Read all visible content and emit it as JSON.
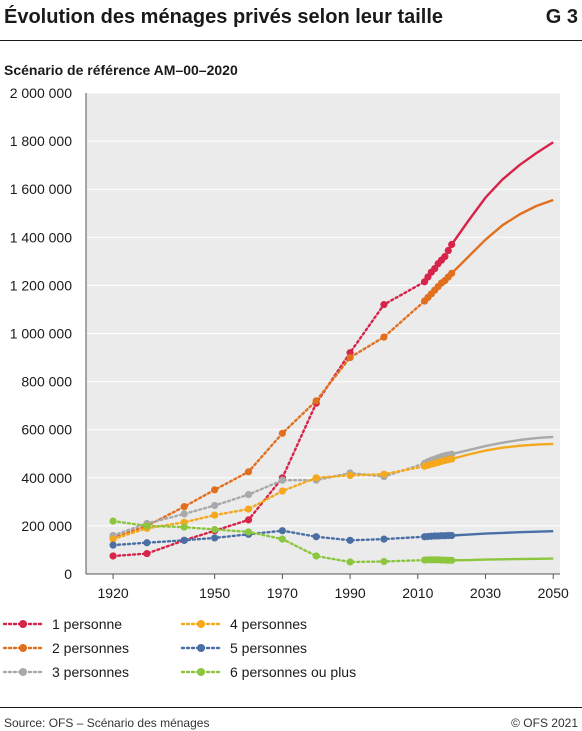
{
  "header": {
    "title": "Évolution des ménages privés selon leur taille",
    "figure_number": "G 3",
    "subtitle": "Scénario de référence AM–00–2020"
  },
  "footer": {
    "source": "Source: OFS – Scénario des ménages",
    "copyright": "© OFS 2021"
  },
  "chart_data": {
    "type": "line",
    "title": "Évolution des ménages privés selon leur taille",
    "subtitle": "Scénario de référence AM–00–2020",
    "xlabel": "",
    "ylabel": "",
    "xlim": [
      1912,
      2052
    ],
    "ylim": [
      0,
      2000000
    ],
    "x_ticks": [
      1920,
      1950,
      1970,
      1990,
      2010,
      2030,
      2050
    ],
    "x_tick_labels": [
      "1920",
      "1950",
      "1970",
      "1990",
      "2010",
      "2030",
      "2050"
    ],
    "y_ticks": [
      0,
      200000,
      400000,
      600000,
      800000,
      1000000,
      1200000,
      1400000,
      1600000,
      1800000,
      2000000
    ],
    "y_tick_labels": [
      "0",
      "200 000",
      "400 000",
      "600 000",
      "800 000",
      "1 000 000",
      "1 200 000",
      "1 400 000",
      "1 600 000",
      "1 800 000",
      "2 000 000"
    ],
    "grid": "horizontal",
    "plot_background": "#ebebeb",
    "legend_position": "bottom",
    "series": [
      {
        "name": "1 personne",
        "color": "#d6244a",
        "observed": [
          [
            1920,
            75000
          ],
          [
            1930,
            85000
          ],
          [
            1941,
            140000
          ],
          [
            1950,
            180000
          ],
          [
            1960,
            225000
          ],
          [
            1970,
            400000
          ],
          [
            1980,
            710000
          ],
          [
            1990,
            920000
          ],
          [
            2000,
            1120000
          ],
          [
            2012,
            1215000
          ],
          [
            2013,
            1235000
          ],
          [
            2014,
            1255000
          ],
          [
            2015,
            1270000
          ],
          [
            2016,
            1290000
          ],
          [
            2017,
            1305000
          ],
          [
            2018,
            1320000
          ],
          [
            2019,
            1345000
          ],
          [
            2020,
            1370000
          ]
        ],
        "projection": [
          [
            2020,
            1370000
          ],
          [
            2025,
            1470000
          ],
          [
            2030,
            1565000
          ],
          [
            2035,
            1640000
          ],
          [
            2040,
            1700000
          ],
          [
            2045,
            1750000
          ],
          [
            2050,
            1795000
          ]
        ]
      },
      {
        "name": "2 personnes",
        "color": "#e07020",
        "observed": [
          [
            1920,
            150000
          ],
          [
            1930,
            200000
          ],
          [
            1941,
            280000
          ],
          [
            1950,
            350000
          ],
          [
            1960,
            425000
          ],
          [
            1970,
            585000
          ],
          [
            1980,
            720000
          ],
          [
            1990,
            900000
          ],
          [
            2000,
            985000
          ],
          [
            2012,
            1135000
          ],
          [
            2013,
            1150000
          ],
          [
            2014,
            1165000
          ],
          [
            2015,
            1180000
          ],
          [
            2016,
            1195000
          ],
          [
            2017,
            1210000
          ],
          [
            2018,
            1220000
          ],
          [
            2019,
            1235000
          ],
          [
            2020,
            1250000
          ]
        ],
        "projection": [
          [
            2020,
            1250000
          ],
          [
            2025,
            1320000
          ],
          [
            2030,
            1390000
          ],
          [
            2035,
            1450000
          ],
          [
            2040,
            1495000
          ],
          [
            2045,
            1530000
          ],
          [
            2050,
            1555000
          ]
        ]
      },
      {
        "name": "3 personnes",
        "color": "#a9a9a9",
        "observed": [
          [
            1920,
            160000
          ],
          [
            1930,
            210000
          ],
          [
            1941,
            250000
          ],
          [
            1950,
            285000
          ],
          [
            1960,
            330000
          ],
          [
            1970,
            390000
          ],
          [
            1980,
            390000
          ],
          [
            1990,
            420000
          ],
          [
            2000,
            405000
          ],
          [
            2012,
            460000
          ],
          [
            2013,
            467000
          ],
          [
            2014,
            473000
          ],
          [
            2015,
            478000
          ],
          [
            2016,
            483000
          ],
          [
            2017,
            488000
          ],
          [
            2018,
            492000
          ],
          [
            2019,
            495000
          ],
          [
            2020,
            498000
          ]
        ],
        "projection": [
          [
            2020,
            498000
          ],
          [
            2025,
            515000
          ],
          [
            2030,
            532000
          ],
          [
            2035,
            546000
          ],
          [
            2040,
            557000
          ],
          [
            2045,
            565000
          ],
          [
            2050,
            570000
          ]
        ]
      },
      {
        "name": "4 personnes",
        "color": "#f5a81c",
        "observed": [
          [
            1920,
            145000
          ],
          [
            1930,
            190000
          ],
          [
            1941,
            215000
          ],
          [
            1950,
            245000
          ],
          [
            1960,
            270000
          ],
          [
            1970,
            345000
          ],
          [
            1980,
            400000
          ],
          [
            1990,
            410000
          ],
          [
            2000,
            415000
          ],
          [
            2012,
            448000
          ],
          [
            2013,
            452000
          ],
          [
            2014,
            456000
          ],
          [
            2015,
            460000
          ],
          [
            2016,
            464000
          ],
          [
            2017,
            468000
          ],
          [
            2018,
            472000
          ],
          [
            2019,
            475000
          ],
          [
            2020,
            478000
          ]
        ],
        "projection": [
          [
            2020,
            478000
          ],
          [
            2025,
            497000
          ],
          [
            2030,
            513000
          ],
          [
            2035,
            525000
          ],
          [
            2040,
            533000
          ],
          [
            2045,
            538000
          ],
          [
            2050,
            541000
          ]
        ]
      },
      {
        "name": "5 personnes",
        "color": "#4a6fa5",
        "observed": [
          [
            1920,
            120000
          ],
          [
            1930,
            130000
          ],
          [
            1941,
            140000
          ],
          [
            1950,
            150000
          ],
          [
            1960,
            165000
          ],
          [
            1970,
            180000
          ],
          [
            1980,
            155000
          ],
          [
            1990,
            140000
          ],
          [
            2000,
            145000
          ],
          [
            2012,
            155000
          ],
          [
            2013,
            156000
          ],
          [
            2014,
            157000
          ],
          [
            2015,
            158000
          ],
          [
            2016,
            158000
          ],
          [
            2017,
            159000
          ],
          [
            2018,
            159000
          ],
          [
            2019,
            160000
          ],
          [
            2020,
            160000
          ]
        ],
        "projection": [
          [
            2020,
            160000
          ],
          [
            2025,
            164000
          ],
          [
            2030,
            168000
          ],
          [
            2035,
            171000
          ],
          [
            2040,
            174000
          ],
          [
            2045,
            176000
          ],
          [
            2050,
            178000
          ]
        ]
      },
      {
        "name": "6 personnes ou plus",
        "color": "#8cc63f",
        "observed": [
          [
            1920,
            220000
          ],
          [
            1930,
            200000
          ],
          [
            1941,
            195000
          ],
          [
            1950,
            185000
          ],
          [
            1960,
            175000
          ],
          [
            1970,
            145000
          ],
          [
            1980,
            75000
          ],
          [
            1990,
            50000
          ],
          [
            2000,
            52000
          ],
          [
            2012,
            58000
          ],
          [
            2013,
            59000
          ],
          [
            2014,
            59000
          ],
          [
            2015,
            59000
          ],
          [
            2016,
            59000
          ],
          [
            2017,
            58000
          ],
          [
            2018,
            58000
          ],
          [
            2019,
            57000
          ],
          [
            2020,
            57000
          ]
        ],
        "projection": [
          [
            2020,
            57000
          ],
          [
            2025,
            58000
          ],
          [
            2030,
            60000
          ],
          [
            2035,
            61000
          ],
          [
            2040,
            62000
          ],
          [
            2045,
            63000
          ],
          [
            2050,
            64000
          ]
        ]
      }
    ]
  }
}
